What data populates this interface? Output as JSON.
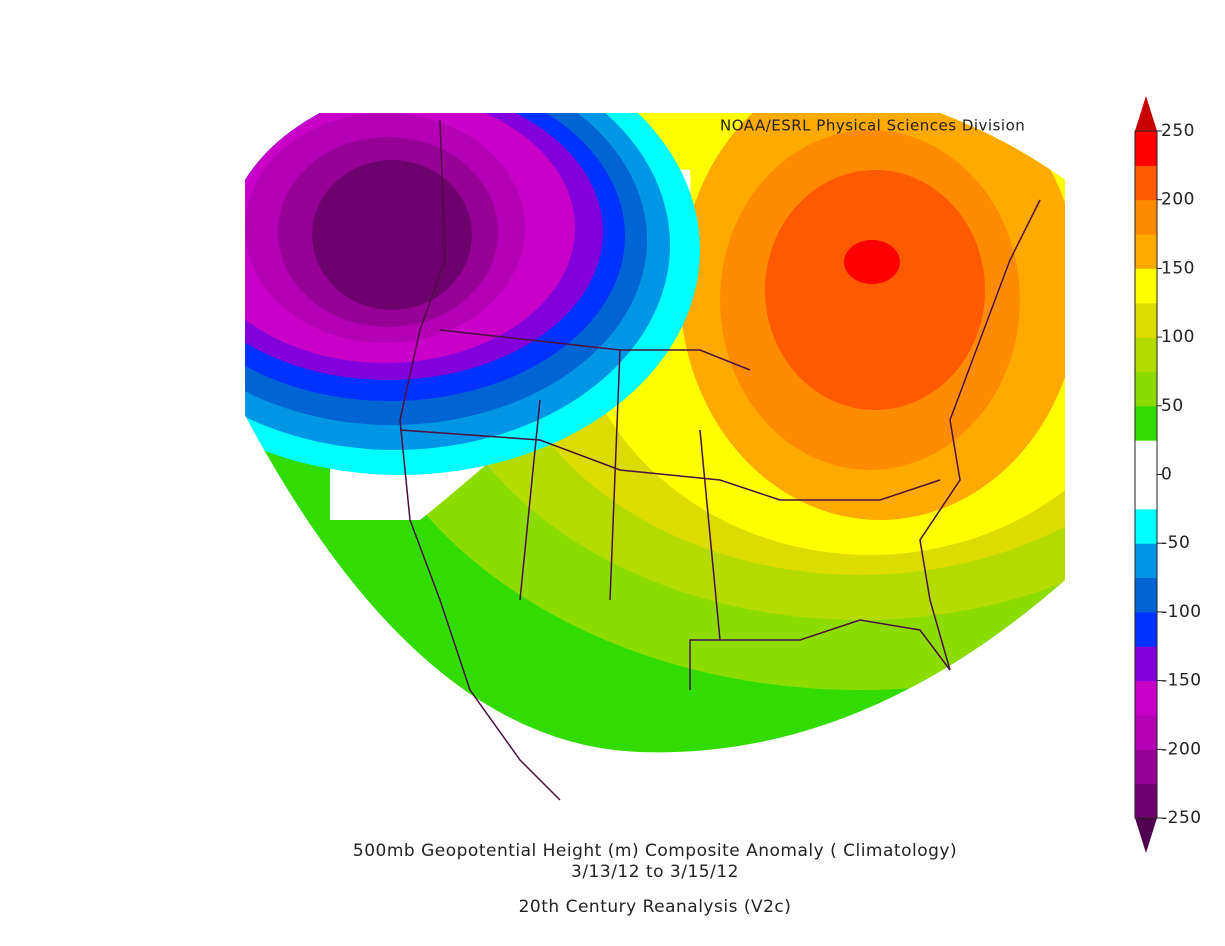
{
  "credit": "NOAA/ESRL Physical Sciences Division",
  "title": [
    "500mb Geopotential Height (m) Composite Anomaly ( Climatology)",
    "3/13/12  to 3/15/12"
  ],
  "subtitle": "20th Century Reanalysis (V2c)",
  "colorbar": {
    "clim": [
      -250,
      250
    ],
    "ticks": [
      -250,
      -200,
      -150,
      -100,
      -50,
      0,
      50,
      100,
      150,
      200,
      250
    ],
    "under_color": "#500050",
    "over_color": "#c80000",
    "colors": [
      "#6e006e",
      "#960096",
      "#b400b4",
      "#c800c8",
      "#8200dc",
      "#0032ff",
      "#0064d2",
      "#0096e6",
      "#00ffff",
      "#ffffff",
      "#ffffff",
      "#32dc00",
      "#8cdc00",
      "#b4dc00",
      "#dcdc00",
      "#ffff00",
      "#ffaa00",
      "#ff8c00",
      "#ff5a00",
      "#ff0000"
    ]
  }
}
